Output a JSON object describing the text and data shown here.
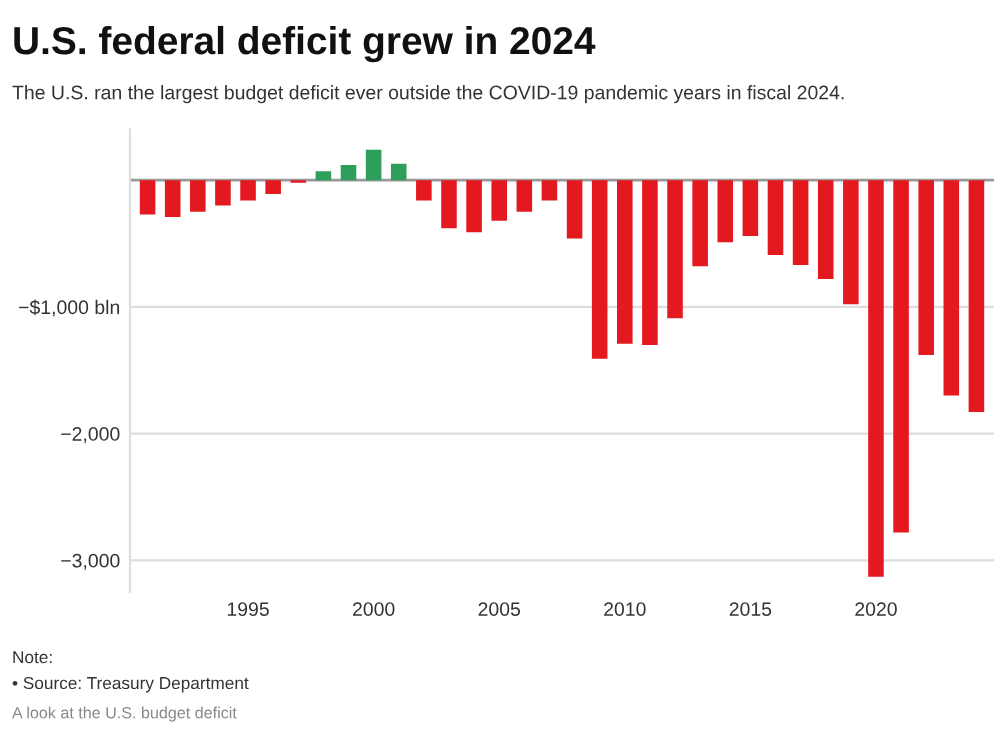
{
  "chart_data": {
    "type": "bar",
    "title": "U.S. federal deficit grew in 2024",
    "subtitle": "The U.S. ran the largest budget deficit ever outside the COVID-19 pandemic years in fiscal 2024.",
    "x": [
      1991,
      1992,
      1993,
      1994,
      1995,
      1996,
      1997,
      1998,
      1999,
      2000,
      2001,
      2002,
      2003,
      2004,
      2005,
      2006,
      2007,
      2008,
      2009,
      2010,
      2011,
      2012,
      2013,
      2014,
      2015,
      2016,
      2017,
      2018,
      2019,
      2020,
      2021,
      2022,
      2023,
      2024
    ],
    "values": [
      -270,
      -290,
      -250,
      -200,
      -160,
      -110,
      -20,
      70,
      120,
      240,
      130,
      -160,
      -380,
      -410,
      -320,
      -250,
      -160,
      -460,
      -1410,
      -1290,
      -1300,
      -1090,
      -680,
      -490,
      -440,
      -590,
      -670,
      -780,
      -980,
      -3130,
      -2780,
      -1380,
      -1700,
      -1830
    ],
    "colors": [
      "#e3191f",
      "#e3191f",
      "#e3191f",
      "#e3191f",
      "#e3191f",
      "#e3191f",
      "#e3191f",
      "#2e9e5b",
      "#2e9e5b",
      "#2e9e5b",
      "#2e9e5b",
      "#e3191f",
      "#e3191f",
      "#e3191f",
      "#e3191f",
      "#e3191f",
      "#e3191f",
      "#e3191f",
      "#e3191f",
      "#e3191f",
      "#e3191f",
      "#e3191f",
      "#e3191f",
      "#e3191f",
      "#e3191f",
      "#e3191f",
      "#e3191f",
      "#e3191f",
      "#e3191f",
      "#e3191f",
      "#e3191f",
      "#e3191f",
      "#e3191f",
      "#e3191f"
    ],
    "xlim": [
      1990.3,
      2024.7
    ],
    "xticks": [
      1995,
      2000,
      2005,
      2010,
      2015,
      2020
    ],
    "yticks": [
      {
        "value": -1000,
        "label": "−$1,000 bln"
      },
      {
        "value": -2000,
        "label": "−2,000"
      },
      {
        "value": -3000,
        "label": "−3,000"
      }
    ],
    "ylim": [
      -3250,
      400
    ],
    "grid": "y",
    "ref_lines": [
      {
        "axis": "y",
        "value": 0,
        "label": null,
        "color": "#999999"
      }
    ],
    "annotations": [
      "Note:",
      "• Source: Treasury Department",
      "A look at the U.S. budget deficit"
    ]
  }
}
